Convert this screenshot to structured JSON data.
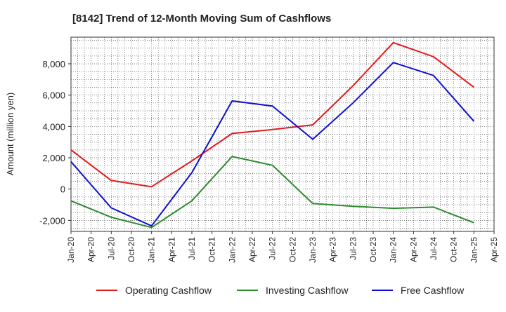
{
  "chart_data": {
    "type": "line",
    "title": "[8142]  Trend of 12-Month Moving Sum of Cashflows",
    "ylabel": "Amount (million yen)",
    "xlabel": "",
    "ylim": [
      -2700,
      9700
    ],
    "y_ticks": [
      -2000,
      0,
      2000,
      4000,
      6000,
      8000
    ],
    "y_tick_labels": [
      "-2,000",
      "0",
      "2,000",
      "4,000",
      "6,000",
      "8,000"
    ],
    "x_tick_labels": [
      "Jan-20",
      "Apr-20",
      "Jul-20",
      "Oct-20",
      "Jan-21",
      "Apr-21",
      "Jul-21",
      "Oct-21",
      "Jan-22",
      "Apr-22",
      "Jul-22",
      "Oct-22",
      "Jan-23",
      "Apr-23",
      "Jul-23",
      "Oct-23",
      "Jan-24",
      "Apr-24",
      "Jul-24",
      "Oct-24",
      "Jan-25",
      "Apr-25"
    ],
    "x": [
      "Jan-20",
      "Jul-20",
      "Jan-21",
      "Jul-21",
      "Jan-22",
      "Jul-22",
      "Jan-23",
      "Jul-23",
      "Jan-24",
      "Jul-24",
      "Jan-25"
    ],
    "grid": true,
    "legend_position": "bottom",
    "series": [
      {
        "name": "Operating Cashflow",
        "color": "#e31a1c",
        "values": [
          2500,
          550,
          150,
          1800,
          3550,
          3800,
          4100,
          6600,
          9350,
          8450,
          6500
        ]
      },
      {
        "name": "Investing Cashflow",
        "color": "#2e8b2e",
        "values": [
          -750,
          -1800,
          -2450,
          -750,
          2080,
          1520,
          -920,
          -1100,
          -1230,
          -1150,
          -2150
        ]
      },
      {
        "name": "Free Cashflow",
        "color": "#1010d0",
        "values": [
          1750,
          -1200,
          -2350,
          1050,
          5630,
          5300,
          3180,
          5500,
          8080,
          7250,
          4330
        ]
      }
    ]
  }
}
